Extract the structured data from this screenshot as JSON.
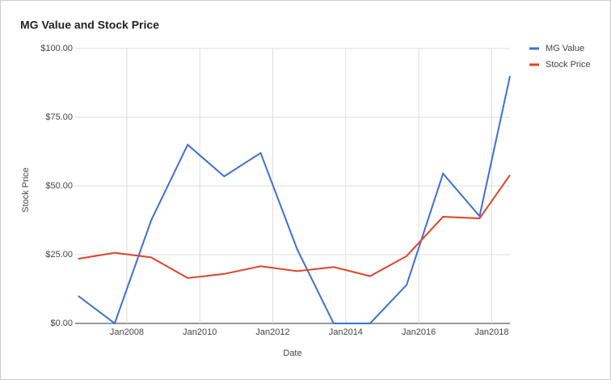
{
  "chart_data": {
    "type": "line",
    "title": "MG Value and Stock Price",
    "x_label": "Date",
    "y_label": "Stock Price",
    "x": [
      "2006-09",
      "2007-09",
      "2008-09",
      "2009-09",
      "2010-09",
      "2011-09",
      "2012-09",
      "2013-09",
      "2014-09",
      "2015-09",
      "2016-09",
      "2017-09",
      "2018-07"
    ],
    "series": [
      {
        "name": "MG Value",
        "color": "#3f6fd1",
        "values": [
          10,
          0,
          37.5,
          65,
          53.5,
          62,
          27,
          0,
          0,
          14,
          54.5,
          39,
          90
        ]
      },
      {
        "name": "Stock Price",
        "color": "#dc4528",
        "values": [
          23.5,
          25.7,
          24,
          16.5,
          18,
          20.8,
          19,
          20.5,
          17.2,
          24.5,
          38.8,
          38.2,
          54
        ]
      }
    ],
    "xlim": [
      "2006-08",
      "2018-07"
    ],
    "xticks": [
      {
        "value": "2008-01",
        "label": "Jan2008"
      },
      {
        "value": "2010-01",
        "label": "Jan2010"
      },
      {
        "value": "2012-01",
        "label": "Jan2012"
      },
      {
        "value": "2014-01",
        "label": "Jan2014"
      },
      {
        "value": "2016-01",
        "label": "Jan2016"
      },
      {
        "value": "2018-01",
        "label": "Jan2018"
      }
    ],
    "ylim": [
      0,
      100
    ],
    "yticks": [
      {
        "value": 0,
        "label": "$0.00"
      },
      {
        "value": 25,
        "label": "$25.00"
      },
      {
        "value": 50,
        "label": "$50.00"
      },
      {
        "value": 75,
        "label": "$75.00"
      },
      {
        "value": 100,
        "label": "$100.00"
      }
    ],
    "grid": true,
    "legend": "right"
  }
}
